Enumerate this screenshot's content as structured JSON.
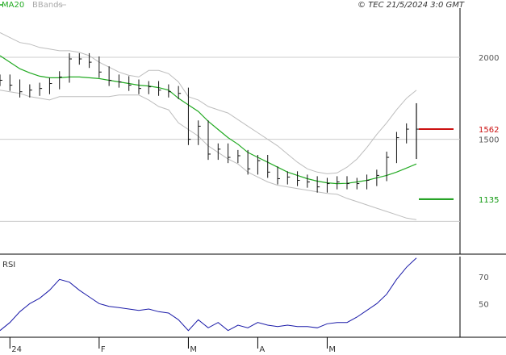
{
  "legend": {
    "ma_label": "MA20",
    "bb_label": "BBands"
  },
  "copyright": "© TEC 21/5/2024 3:0 GMT",
  "colors": {
    "ma": "#22aa22",
    "bands": "#bdbdbd",
    "price": "#111111",
    "rsi": "#1a1aa8",
    "resistance": "#cc1111",
    "support": "#119911",
    "grid": "#cccccc",
    "frame": "#000000"
  },
  "chart_data": [
    {
      "type": "line",
      "title": "",
      "xlabel": "",
      "ylabel": "",
      "x_ticks": [
        "24",
        "F",
        "M",
        "A",
        "M"
      ],
      "x_tick_index": [
        1,
        10,
        19,
        26,
        33
      ],
      "ylim": [
        800,
        2300
      ],
      "y_ticks": [
        {
          "value": 2000,
          "label": "2000"
        },
        {
          "value": 1500,
          "label": "1500"
        }
      ],
      "grid": true,
      "levels": [
        {
          "name": "resistance",
          "value": 1562,
          "label": "1562"
        },
        {
          "name": "support",
          "value": 1135,
          "label": "1135"
        }
      ],
      "series": [
        {
          "key": "close",
          "values": [
            1860,
            1830,
            1790,
            1800,
            1810,
            1840,
            1880,
            1990,
            1990,
            1970,
            1910,
            1860,
            1850,
            1830,
            1810,
            1820,
            1800,
            1790,
            1780,
            1500,
            1580,
            1410,
            1440,
            1390,
            1400,
            1320,
            1370,
            1300,
            1260,
            1270,
            1250,
            1240,
            1210,
            1230,
            1240,
            1230,
            1230,
            1250,
            1280,
            1390,
            1510,
            1562,
            1562
          ]
        },
        {
          "key": "ma20",
          "values": [
            2010,
            1970,
            1930,
            1905,
            1885,
            1875,
            1875,
            1880,
            1880,
            1875,
            1870,
            1860,
            1850,
            1840,
            1830,
            1825,
            1815,
            1800,
            1750,
            1710,
            1670,
            1610,
            1560,
            1510,
            1470,
            1420,
            1390,
            1360,
            1330,
            1300,
            1280,
            1260,
            1245,
            1235,
            1230,
            1232,
            1240,
            1250,
            1265,
            1280,
            1300,
            1325,
            1350
          ]
        },
        {
          "key": "bb_upper",
          "values": [
            2150,
            2120,
            2090,
            2080,
            2060,
            2050,
            2040,
            2040,
            2030,
            2010,
            1970,
            1940,
            1910,
            1890,
            1880,
            1920,
            1920,
            1900,
            1850,
            1760,
            1740,
            1700,
            1680,
            1660,
            1620,
            1580,
            1540,
            1500,
            1460,
            1410,
            1360,
            1320,
            1300,
            1290,
            1295,
            1330,
            1380,
            1450,
            1530,
            1600,
            1680,
            1750,
            1800
          ]
        },
        {
          "key": "bb_lower",
          "values": [
            1800,
            1790,
            1780,
            1760,
            1750,
            1740,
            1760,
            1760,
            1760,
            1760,
            1760,
            1760,
            1770,
            1770,
            1770,
            1740,
            1700,
            1680,
            1600,
            1560,
            1520,
            1460,
            1420,
            1380,
            1350,
            1300,
            1270,
            1240,
            1220,
            1210,
            1200,
            1190,
            1180,
            1170,
            1165,
            1140,
            1120,
            1100,
            1080,
            1060,
            1040,
            1020,
            1010
          ]
        }
      ]
    },
    {
      "type": "line",
      "title": "",
      "ylabel": "RSI",
      "ylim": [
        25,
        85
      ],
      "y_ticks": [
        {
          "value": 70,
          "label": "70"
        },
        {
          "value": 50,
          "label": "50"
        }
      ],
      "series": [
        {
          "key": "rsi",
          "values": [
            30,
            36,
            44,
            50,
            54,
            60,
            68,
            66,
            60,
            55,
            50,
            48,
            47,
            46,
            45,
            46,
            44,
            43,
            38,
            30,
            38,
            32,
            36,
            30,
            34,
            32,
            36,
            34,
            33,
            34,
            33,
            33,
            32,
            35,
            36,
            36,
            40,
            45,
            50,
            57,
            68,
            77,
            84
          ]
        }
      ]
    }
  ]
}
